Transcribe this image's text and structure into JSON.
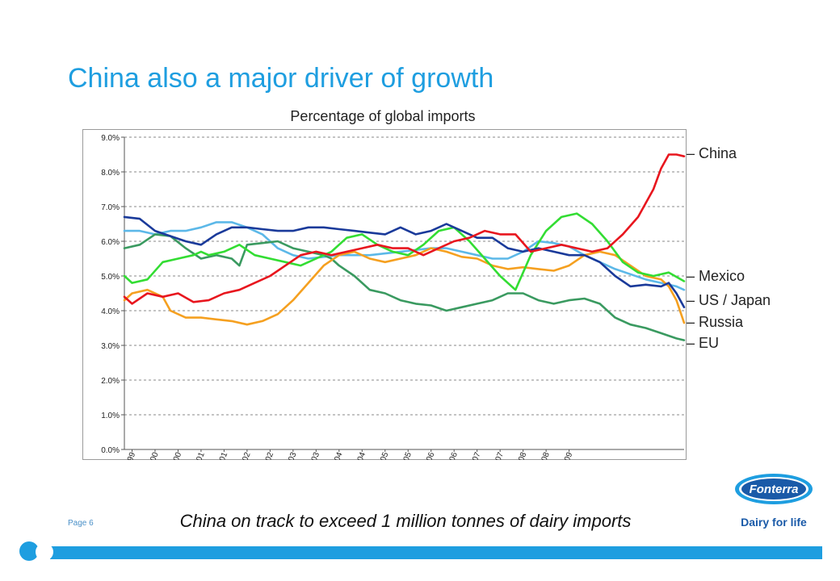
{
  "slide": {
    "title": "China also a major driver of growth",
    "caption": "China on track to exceed 1 million tonnes of dairy imports",
    "page_label": "Page 6",
    "brand_name": "Fonterra",
    "brand_tagline": "Dairy for life"
  },
  "colors": {
    "accent": "#1e9ee0",
    "China": "#e8161e",
    "Mexico": "#33dd33",
    "US / Japan": "#1a3a9a",
    "Russia": "#f5a020",
    "EU": "#3a9a60",
    "Series6": "#5cb8e8"
  },
  "legend": [
    {
      "label": "– China",
      "series": "China"
    },
    {
      "label": "– Mexico",
      "series": "Mexico"
    },
    {
      "label": "– US / Japan",
      "series": "US / Japan"
    },
    {
      "label": "– Russia",
      "series": "Russia"
    },
    {
      "label": "– EU",
      "series": "EU"
    }
  ],
  "chart_data": {
    "type": "line",
    "title": "Percentage of global imports",
    "xlabel": "",
    "ylabel": "",
    "ylim": [
      0,
      9
    ],
    "grid": true,
    "legend_placement": "right",
    "y_ticks": [
      "0.0%",
      "1.0%",
      "2.0%",
      "3.0%",
      "4.0%",
      "5.0%",
      "6.0%",
      "7.0%",
      "8.0%",
      "9.0%"
    ],
    "x_ticks": [
      "Dec-99",
      "Jun-00",
      "Dec-00",
      "Jun-01",
      "Dec-01",
      "Jun-02",
      "Dec-02",
      "Jun-03",
      "Dec-03",
      "Jun-04",
      "Dec-04",
      "Jun-05",
      "Dec-05",
      "Jun-06",
      "Dec-06",
      "Jun-07",
      "Dec-07",
      "Jun-08",
      "Dec-08",
      "Jun-09"
    ],
    "x_months_start": "Dec-99",
    "series": [
      {
        "name": "China",
        "points": [
          [
            0,
            4.4
          ],
          [
            2,
            4.2
          ],
          [
            6,
            4.5
          ],
          [
            10,
            4.4
          ],
          [
            14,
            4.5
          ],
          [
            18,
            4.25
          ],
          [
            22,
            4.3
          ],
          [
            26,
            4.5
          ],
          [
            30,
            4.6
          ],
          [
            34,
            4.8
          ],
          [
            38,
            5.0
          ],
          [
            42,
            5.3
          ],
          [
            46,
            5.6
          ],
          [
            50,
            5.7
          ],
          [
            54,
            5.6
          ],
          [
            58,
            5.7
          ],
          [
            62,
            5.8
          ],
          [
            66,
            5.9
          ],
          [
            70,
            5.8
          ],
          [
            74,
            5.8
          ],
          [
            78,
            5.6
          ],
          [
            82,
            5.8
          ],
          [
            86,
            6.0
          ],
          [
            90,
            6.1
          ],
          [
            94,
            6.3
          ],
          [
            98,
            6.2
          ],
          [
            102,
            6.2
          ],
          [
            106,
            5.7
          ],
          [
            110,
            5.8
          ],
          [
            114,
            5.9
          ],
          [
            118,
            5.8
          ],
          [
            122,
            5.7
          ],
          [
            126,
            5.8
          ],
          [
            130,
            6.2
          ],
          [
            134,
            6.7
          ],
          [
            138,
            7.5
          ],
          [
            140,
            8.1
          ],
          [
            142,
            8.5
          ],
          [
            144,
            8.5
          ],
          [
            146,
            8.45
          ]
        ]
      },
      {
        "name": "Mexico",
        "points": [
          [
            0,
            5.0
          ],
          [
            2,
            4.8
          ],
          [
            6,
            4.9
          ],
          [
            10,
            5.4
          ],
          [
            14,
            5.5
          ],
          [
            18,
            5.6
          ],
          [
            20,
            5.7
          ],
          [
            22,
            5.6
          ],
          [
            26,
            5.7
          ],
          [
            30,
            5.9
          ],
          [
            34,
            5.6
          ],
          [
            38,
            5.5
          ],
          [
            42,
            5.4
          ],
          [
            46,
            5.3
          ],
          [
            50,
            5.5
          ],
          [
            54,
            5.7
          ],
          [
            58,
            6.1
          ],
          [
            62,
            6.2
          ],
          [
            66,
            5.9
          ],
          [
            70,
            5.7
          ],
          [
            74,
            5.6
          ],
          [
            78,
            5.9
          ],
          [
            82,
            6.3
          ],
          [
            86,
            6.4
          ],
          [
            90,
            6.0
          ],
          [
            94,
            5.5
          ],
          [
            98,
            5.0
          ],
          [
            102,
            4.6
          ],
          [
            106,
            5.6
          ],
          [
            110,
            6.3
          ],
          [
            114,
            6.7
          ],
          [
            118,
            6.8
          ],
          [
            122,
            6.5
          ],
          [
            126,
            6.0
          ],
          [
            130,
            5.4
          ],
          [
            134,
            5.1
          ],
          [
            138,
            5.0
          ],
          [
            142,
            5.1
          ],
          [
            146,
            4.85
          ]
        ]
      },
      {
        "name": "US / Japan",
        "points": [
          [
            0,
            6.7
          ],
          [
            4,
            6.65
          ],
          [
            8,
            6.3
          ],
          [
            12,
            6.15
          ],
          [
            16,
            6.0
          ],
          [
            20,
            5.9
          ],
          [
            24,
            6.2
          ],
          [
            28,
            6.4
          ],
          [
            32,
            6.4
          ],
          [
            36,
            6.35
          ],
          [
            40,
            6.3
          ],
          [
            44,
            6.3
          ],
          [
            48,
            6.4
          ],
          [
            52,
            6.4
          ],
          [
            56,
            6.35
          ],
          [
            60,
            6.3
          ],
          [
            64,
            6.25
          ],
          [
            68,
            6.2
          ],
          [
            72,
            6.4
          ],
          [
            76,
            6.2
          ],
          [
            80,
            6.3
          ],
          [
            84,
            6.5
          ],
          [
            88,
            6.3
          ],
          [
            92,
            6.1
          ],
          [
            96,
            6.1
          ],
          [
            100,
            5.8
          ],
          [
            104,
            5.7
          ],
          [
            108,
            5.8
          ],
          [
            112,
            5.7
          ],
          [
            116,
            5.6
          ],
          [
            120,
            5.6
          ],
          [
            124,
            5.4
          ],
          [
            128,
            5.0
          ],
          [
            132,
            4.7
          ],
          [
            136,
            4.75
          ],
          [
            140,
            4.7
          ],
          [
            142,
            4.8
          ],
          [
            144,
            4.5
          ],
          [
            146,
            4.1
          ]
        ]
      },
      {
        "name": "Russia",
        "points": [
          [
            0,
            4.3
          ],
          [
            2,
            4.5
          ],
          [
            6,
            4.6
          ],
          [
            10,
            4.4
          ],
          [
            12,
            4.0
          ],
          [
            16,
            3.8
          ],
          [
            20,
            3.8
          ],
          [
            24,
            3.75
          ],
          [
            28,
            3.7
          ],
          [
            32,
            3.6
          ],
          [
            36,
            3.7
          ],
          [
            40,
            3.9
          ],
          [
            44,
            4.3
          ],
          [
            48,
            4.8
          ],
          [
            52,
            5.3
          ],
          [
            56,
            5.6
          ],
          [
            60,
            5.7
          ],
          [
            64,
            5.5
          ],
          [
            68,
            5.4
          ],
          [
            72,
            5.5
          ],
          [
            76,
            5.6
          ],
          [
            80,
            5.8
          ],
          [
            84,
            5.7
          ],
          [
            88,
            5.55
          ],
          [
            92,
            5.5
          ],
          [
            96,
            5.3
          ],
          [
            100,
            5.2
          ],
          [
            104,
            5.25
          ],
          [
            108,
            5.2
          ],
          [
            112,
            5.15
          ],
          [
            116,
            5.3
          ],
          [
            120,
            5.6
          ],
          [
            124,
            5.7
          ],
          [
            128,
            5.6
          ],
          [
            132,
            5.3
          ],
          [
            136,
            5.0
          ],
          [
            140,
            4.9
          ],
          [
            142,
            4.7
          ],
          [
            144,
            4.3
          ],
          [
            146,
            3.65
          ]
        ]
      },
      {
        "name": "EU",
        "points": [
          [
            0,
            5.8
          ],
          [
            4,
            5.9
          ],
          [
            8,
            6.2
          ],
          [
            12,
            6.15
          ],
          [
            16,
            5.8
          ],
          [
            20,
            5.5
          ],
          [
            24,
            5.6
          ],
          [
            28,
            5.5
          ],
          [
            30,
            5.3
          ],
          [
            32,
            5.9
          ],
          [
            36,
            5.95
          ],
          [
            40,
            6.0
          ],
          [
            44,
            5.8
          ],
          [
            48,
            5.7
          ],
          [
            52,
            5.6
          ],
          [
            54,
            5.5
          ],
          [
            56,
            5.3
          ],
          [
            60,
            5.0
          ],
          [
            64,
            4.6
          ],
          [
            68,
            4.5
          ],
          [
            72,
            4.3
          ],
          [
            76,
            4.2
          ],
          [
            80,
            4.15
          ],
          [
            84,
            4.0
          ],
          [
            88,
            4.1
          ],
          [
            92,
            4.2
          ],
          [
            96,
            4.3
          ],
          [
            100,
            4.5
          ],
          [
            104,
            4.5
          ],
          [
            108,
            4.3
          ],
          [
            112,
            4.2
          ],
          [
            116,
            4.3
          ],
          [
            120,
            4.35
          ],
          [
            124,
            4.2
          ],
          [
            128,
            3.8
          ],
          [
            132,
            3.6
          ],
          [
            136,
            3.5
          ],
          [
            140,
            3.35
          ],
          [
            144,
            3.2
          ],
          [
            146,
            3.15
          ]
        ]
      },
      {
        "name": "",
        "points": [
          [
            0,
            6.3
          ],
          [
            4,
            6.3
          ],
          [
            8,
            6.2
          ],
          [
            12,
            6.3
          ],
          [
            16,
            6.3
          ],
          [
            20,
            6.4
          ],
          [
            24,
            6.55
          ],
          [
            28,
            6.55
          ],
          [
            32,
            6.4
          ],
          [
            36,
            6.2
          ],
          [
            40,
            5.8
          ],
          [
            44,
            5.6
          ],
          [
            48,
            5.5
          ],
          [
            52,
            5.55
          ],
          [
            56,
            5.6
          ],
          [
            60,
            5.6
          ],
          [
            64,
            5.6
          ],
          [
            68,
            5.65
          ],
          [
            72,
            5.7
          ],
          [
            76,
            5.75
          ],
          [
            80,
            5.8
          ],
          [
            84,
            5.8
          ],
          [
            88,
            5.7
          ],
          [
            92,
            5.6
          ],
          [
            96,
            5.5
          ],
          [
            100,
            5.5
          ],
          [
            104,
            5.7
          ],
          [
            108,
            6.0
          ],
          [
            112,
            5.95
          ],
          [
            116,
            5.85
          ],
          [
            120,
            5.6
          ],
          [
            124,
            5.4
          ],
          [
            128,
            5.2
          ],
          [
            132,
            5.05
          ],
          [
            136,
            4.9
          ],
          [
            140,
            4.8
          ],
          [
            144,
            4.7
          ],
          [
            146,
            4.6
          ]
        ]
      }
    ]
  }
}
